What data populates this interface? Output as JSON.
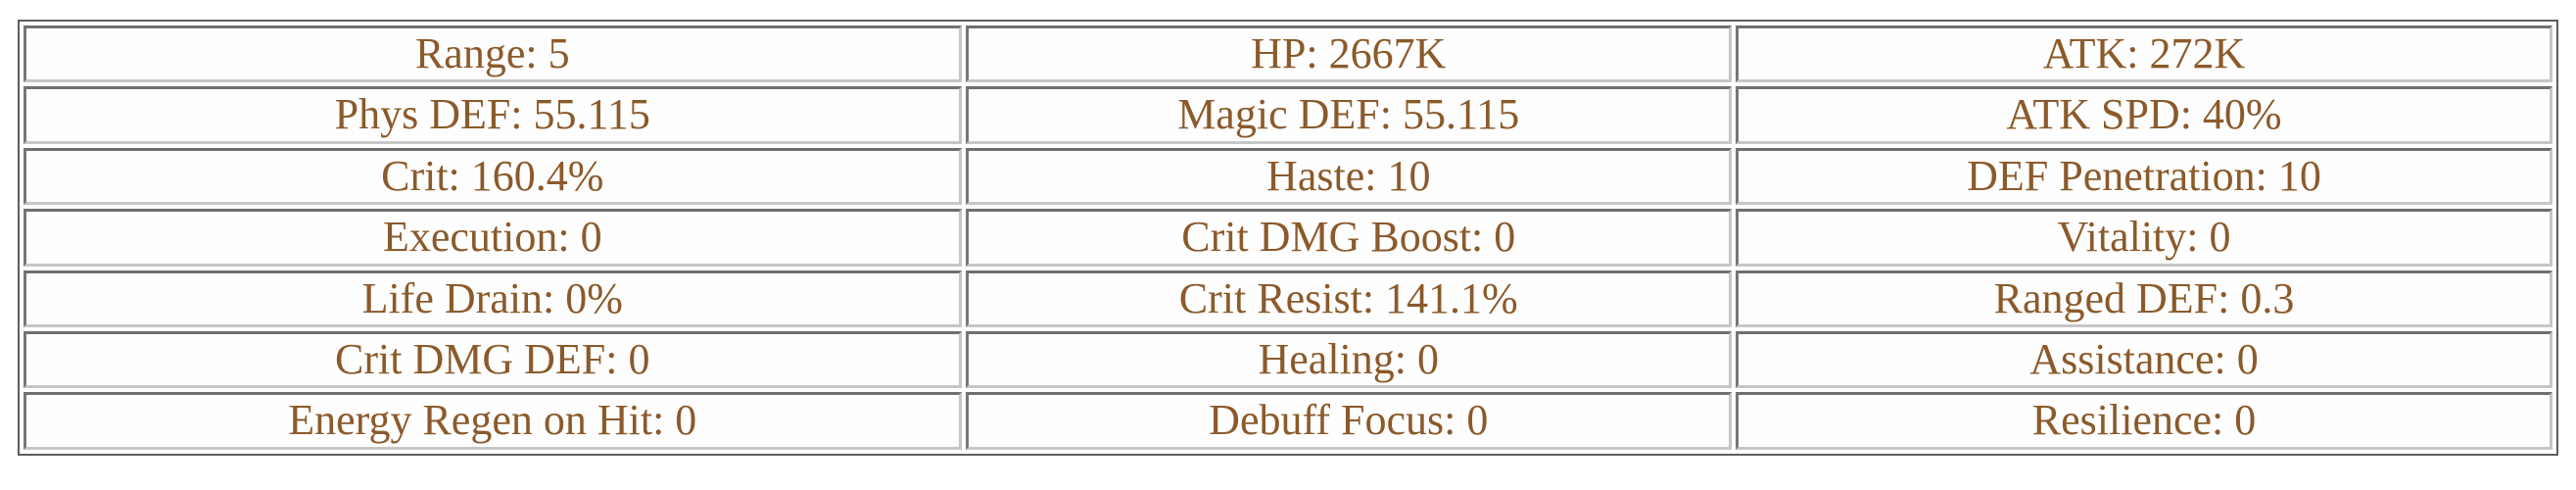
{
  "colors": {
    "text": "#8b5a2b",
    "border_dark": "#6f6f6f",
    "border_light": "#c6c6c6",
    "table_outline": "#5e5e5e",
    "background": "#ffffff"
  },
  "table": {
    "rows": [
      [
        "Range: 5",
        "HP: 2667K",
        "ATK: 272K"
      ],
      [
        "Phys DEF: 55.115",
        "Magic DEF: 55.115",
        "ATK SPD: 40%"
      ],
      [
        "Crit: 160.4%",
        "Haste: 10",
        "DEF Penetration: 10"
      ],
      [
        "Execution: 0",
        "Crit DMG Boost: 0",
        "Vitality: 0"
      ],
      [
        "Life Drain: 0%",
        "Crit Resist: 141.1%",
        "Ranged DEF: 0.3"
      ],
      [
        "Crit DMG DEF: 0",
        "Healing: 0",
        "Assistance: 0"
      ],
      [
        "Energy Regen on Hit: 0",
        "Debuff Focus: 0",
        "Resilience: 0"
      ]
    ]
  }
}
